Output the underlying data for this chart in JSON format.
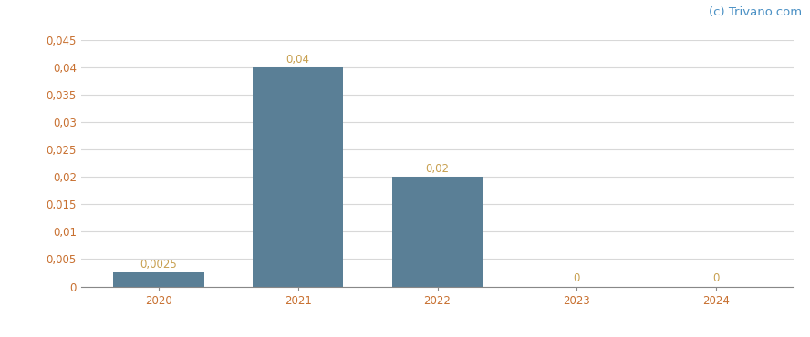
{
  "categories": [
    "2020",
    "2021",
    "2022",
    "2023",
    "2024"
  ],
  "values": [
    0.0025,
    0.04,
    0.02,
    0,
    0
  ],
  "bar_color": "#5a7f96",
  "bar_width": 0.65,
  "ylim": [
    0,
    0.045
  ],
  "yticks": [
    0,
    0.005,
    0.01,
    0.015,
    0.02,
    0.025,
    0.03,
    0.035,
    0.04,
    0.045
  ],
  "ytick_labels": [
    "0",
    "0,005",
    "0,01",
    "0,015",
    "0,02",
    "0,025",
    "0,03",
    "0,035",
    "0,04",
    "0,045"
  ],
  "value_labels": [
    "0,0025",
    "0,04",
    "0,02",
    "0",
    "0"
  ],
  "background_color": "#ffffff",
  "plot_background_color": "#ffffff",
  "grid_color": "#d8d8d8",
  "watermark": "(c) Trivano.com",
  "watermark_color": "#4a90c4",
  "label_color": "#c8a050",
  "label_fontsize": 8.5,
  "tick_fontsize": 8.5,
  "tick_color": "#c87030",
  "watermark_fontsize": 9.5,
  "axis_color": "#888888"
}
